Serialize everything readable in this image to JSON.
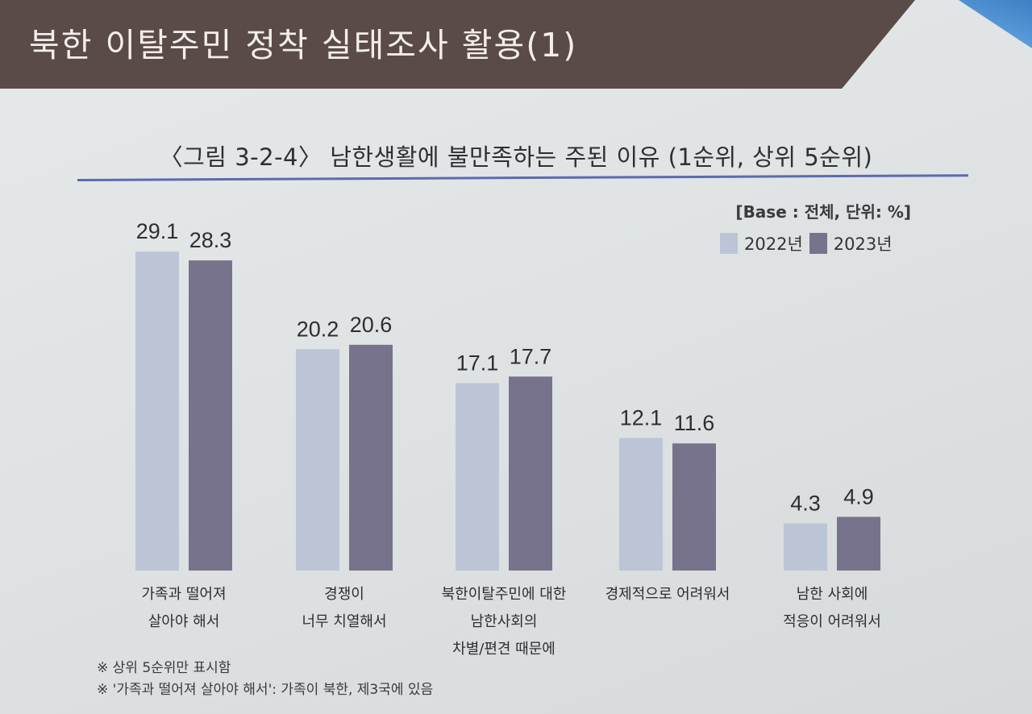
{
  "slide": {
    "title": "북한 이탈주민 정착 실태조사 활용(1)"
  },
  "figure": {
    "title": "〈그림 3-2-4〉 남한생활에 불만족하는 주된 이유 (1순위, 상위 5순위)",
    "base_note": "[Base : 전체, 단위: %]"
  },
  "legend": {
    "series_2022": "2022년",
    "series_2023": "2023년"
  },
  "notes": [
    "※ 상위 5순위만 표시함",
    "※ '가족과 떨어져 살아야 해서': 가족이 북한, 제3국에 있음"
  ],
  "colors": {
    "series_2022": "#bcc5d6",
    "series_2023": "#77738d",
    "rule": "#5a6bb0"
  },
  "chart_data": {
    "type": "bar",
    "title": "〈그림 3-2-4〉 남한생활에 불만족하는 주된 이유 (1순위, 상위 5순위)",
    "categories": [
      [
        "가족과 떨어져",
        "살아야 해서"
      ],
      [
        "경쟁이",
        "너무 치열해서"
      ],
      [
        "북한이탈주민에 대한",
        "남한사회의",
        "차별/편견 때문에"
      ],
      [
        "경제적으로 어려워서"
      ],
      [
        "남한 사회에",
        "적응이 어려워서"
      ]
    ],
    "series": [
      {
        "name": "2022년",
        "values": [
          29.1,
          20.2,
          17.1,
          12.1,
          4.3
        ]
      },
      {
        "name": "2023년",
        "values": [
          28.3,
          20.6,
          17.7,
          11.6,
          4.9
        ]
      }
    ],
    "unit": "%",
    "value_labels": true,
    "legend_position": "top-right",
    "grid": false
  }
}
